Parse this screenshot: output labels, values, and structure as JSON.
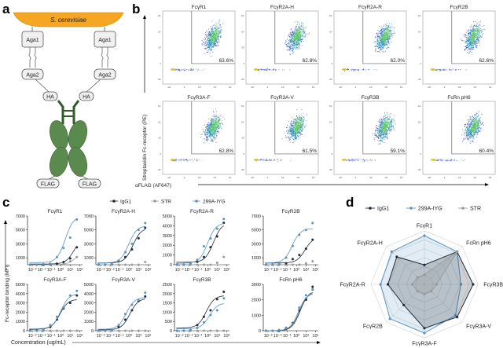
{
  "panel_labels": {
    "a": "a",
    "b": "b",
    "c": "c",
    "d": "d"
  },
  "diagram": {
    "yeast": "S. cerevisiae",
    "aga1": "Aga1",
    "aga2": "Aga2",
    "ss": "S S",
    "ha": "HA",
    "flag": "FLAG",
    "colors": {
      "yeast": "#f5a623",
      "antibody": "#5b8a4e",
      "hinge": "#2e5e26"
    }
  },
  "chart_data": [
    {
      "type": "scatter",
      "panel": "b",
      "xlabel": "αFLAG (AF647)",
      "ylabel": "Streptavidin Fc-receptor (PE)",
      "x_ticks": [
        "-10³",
        "0",
        "10³",
        "10⁴",
        "10⁵"
      ],
      "y_ticks": [
        "10⁵",
        "10⁴",
        "10³",
        "0",
        "-10³"
      ],
      "plots": [
        {
          "title": "FcγR1",
          "gate_percent": "63.6%"
        },
        {
          "title": "FcγR2A-H",
          "gate_percent": "62.8%"
        },
        {
          "title": "FcγR2A-R",
          "gate_percent": "62.0%"
        },
        {
          "title": "FcγR2B",
          "gate_percent": "62.6%"
        },
        {
          "title": "FcγR3A-F",
          "gate_percent": "62.8%"
        },
        {
          "title": "FcγR3A-V",
          "gate_percent": "61.5%"
        },
        {
          "title": "FcγR3B",
          "gate_percent": "59.1%"
        },
        {
          "title": "FcRn pH6",
          "gate_percent": "60.4%"
        }
      ]
    },
    {
      "type": "line",
      "panel": "c",
      "xlabel": "Concentration (ug/mL)",
      "ylabel": "Fc-receptor binding (MFI)",
      "x_scale": "log",
      "x_ticks": [
        "10⁻³",
        "10⁻²",
        "10⁻¹",
        "10⁰",
        "10¹",
        "10²"
      ],
      "legend": [
        {
          "name": "IgG1",
          "color": "#1f2a38"
        },
        {
          "name": "STR",
          "color": "#9a9a9a"
        },
        {
          "name": "299A-IYG",
          "color": "#5b93c0"
        }
      ],
      "x": [
        0.0006,
        0.003,
        0.015,
        0.08,
        0.4,
        2,
        10,
        50
      ],
      "plots": [
        {
          "title": "FcγR1",
          "ylim": [
            0,
            7000
          ],
          "yticks": [
            1000,
            3000,
            5000,
            7000
          ],
          "series": {
            "IgG1": [
              0,
              0,
              0,
              100,
              150,
              400,
              900,
              2500
            ],
            "STR": [
              0,
              0,
              0,
              0,
              50,
              100,
              500,
              1100
            ],
            "299A-IYG": [
              0,
              0,
              100,
              150,
              1100,
              2400,
              3900,
              6500
            ]
          },
          "fits": {
            "IgG1": [
              100,
              4000,
              25
            ],
            "STR": [
              0,
              2000,
              40
            ],
            "299A-IYG": [
              300,
              7000,
              3
            ]
          }
        },
        {
          "title": "FcγR2A-H",
          "ylim": [
            0,
            7000
          ],
          "yticks": [
            1000,
            3000,
            5000,
            7000
          ],
          "series": {
            "IgG1": [
              0,
              0,
              100,
              500,
              1100,
              2200,
              3800,
              5300
            ],
            "STR": [
              0,
              0,
              0,
              0,
              0,
              0,
              0,
              400
            ],
            "299A-IYG": [
              0,
              0,
              100,
              600,
              1800,
              3000,
              5000,
              6000
            ]
          },
          "fits": {
            "IgG1": [
              250,
              5300,
              2.5
            ],
            "STR": [
              0,
              0,
              1
            ],
            "299A-IYG": [
              250,
              5600,
              0.9
            ]
          }
        },
        {
          "title": "FcγR2A-R",
          "ylim": [
            0,
            5000
          ],
          "yticks": [
            0,
            1000,
            2000,
            3000,
            4000,
            5000
          ],
          "series": {
            "IgG1": [
              0,
              0,
              100,
              300,
              800,
              1800,
              2900,
              4300
            ],
            "STR": [
              0,
              0,
              0,
              0,
              0,
              0,
              200,
              800
            ],
            "299A-IYG": [
              0,
              0,
              100,
              500,
              1900,
              2700,
              3700,
              4700
            ]
          },
          "fits": {
            "IgG1": [
              250,
              4300,
              4
            ],
            "STR": [
              0,
              0,
              1
            ],
            "299A-IYG": [
              150,
              4300,
              1
            ]
          }
        },
        {
          "title": "FcγR2B",
          "ylim": [
            0,
            7000
          ],
          "yticks": [
            1000,
            3000,
            5000,
            7000
          ],
          "series": {
            "IgG1": [
              0,
              0,
              100,
              200,
              800,
              1400,
              2300,
              3600
            ],
            "STR": [
              0,
              0,
              0,
              0,
              0,
              0,
              200,
              500
            ],
            "299A-IYG": [
              0,
              0,
              100,
              1000,
              2700,
              4300,
              5000,
              6000
            ]
          },
          "fits": {
            "IgG1": [
              250,
              4000,
              8
            ],
            "STR": [
              0,
              0,
              1
            ],
            "299A-IYG": [
              250,
              5200,
              0.35
            ]
          }
        },
        {
          "title": "FcγR3A-F",
          "ylim": [
            0,
            5000
          ],
          "yticks": [
            0,
            1000,
            2000,
            3000,
            4000,
            5000
          ],
          "series": {
            "IgG1": [
              0,
              0,
              100,
              400,
              1200,
              2400,
              3000,
              3800
            ],
            "STR": [
              0,
              0,
              0,
              0,
              0,
              0,
              0,
              0
            ],
            "299A-IYG": [
              0,
              0,
              100,
              600,
              1500,
              2500,
              3800,
              4300
            ]
          },
          "fits": {
            "IgG1": [
              150,
              3400,
              0.8
            ],
            "STR": [
              0,
              0,
              1
            ],
            "299A-IYG": [
              200,
              4000,
              1
            ]
          }
        },
        {
          "title": "FcγR3A-V",
          "ylim": [
            0,
            5000
          ],
          "yticks": [
            0,
            1000,
            2000,
            3000,
            4000,
            5000
          ],
          "series": {
            "IgG1": [
              0,
              0,
              100,
              400,
              1200,
              2200,
              3200,
              3700
            ],
            "STR": [
              0,
              0,
              0,
              0,
              0,
              0,
              0,
              0
            ],
            "299A-IYG": [
              0,
              0,
              100,
              600,
              1800,
              2800,
              3300,
              4100
            ]
          },
          "fits": {
            "IgG1": [
              100,
              3500,
              1.2
            ],
            "STR": [
              0,
              0,
              1
            ],
            "299A-IYG": [
              150,
              3600,
              0.5
            ]
          }
        },
        {
          "title": "FcγR3B",
          "ylim": [
            0,
            2500
          ],
          "yticks": [
            0,
            500,
            1000,
            1500,
            2000,
            2500
          ],
          "series": {
            "IgG1": [
              0,
              0,
              50,
              300,
              750,
              1100,
              1700,
              2100
            ],
            "STR": [
              0,
              0,
              0,
              0,
              0,
              0,
              0,
              0
            ],
            "299A-IYG": [
              0,
              0,
              50,
              150,
              450,
              850,
              1100,
              1750
            ]
          },
          "fits": {
            "IgG1": [
              150,
              1900,
              0.7
            ],
            "STR": [
              0,
              0,
              1
            ],
            "299A-IYG": [
              100,
              1500,
              1.5
            ]
          }
        },
        {
          "title": "FcRn pH6",
          "ylim": [
            0,
            3000
          ],
          "yticks": [
            0,
            1000,
            2000,
            3000
          ],
          "series": {
            "IgG1": [
              0,
              0,
              0,
              150,
              500,
              1300,
              2000,
              2850
            ],
            "STR": [
              0,
              0,
              0,
              100,
              500,
              1400,
              2100,
              2700
            ],
            "299A-IYG": [
              0,
              0,
              50,
              200,
              450,
              1500,
              2300,
              2650
            ]
          },
          "fits": {
            "IgG1": [
              0,
              2600,
              2.5
            ],
            "STR": [
              0,
              2500,
              2
            ],
            "299A-IYG": [
              0,
              2450,
              1.6
            ]
          }
        }
      ]
    },
    {
      "type": "radar",
      "panel": "d",
      "axes": [
        "FcγR1",
        "FcRn pH6",
        "FcγR3B",
        "FcγR3A-V",
        "FcγR3A-F",
        "FcγR2B",
        "FcγR2A-R",
        "FcγR2A-H"
      ],
      "series": [
        {
          "name": "IgG1",
          "color": "#1f2a38",
          "values": [
            0.4,
            0.95,
            1.0,
            0.95,
            0.9,
            0.6,
            0.75,
            0.8
          ]
        },
        {
          "name": "299A-IYG",
          "color": "#5b93c0",
          "values": [
            1.0,
            0.95,
            0.75,
            0.9,
            1.0,
            1.0,
            0.9,
            0.95
          ]
        },
        {
          "name": "STR",
          "color": "#9a9a9a",
          "values": [
            0.2,
            0.95,
            0.25,
            0.2,
            0.2,
            0.2,
            0.25,
            0.2
          ]
        }
      ]
    }
  ]
}
